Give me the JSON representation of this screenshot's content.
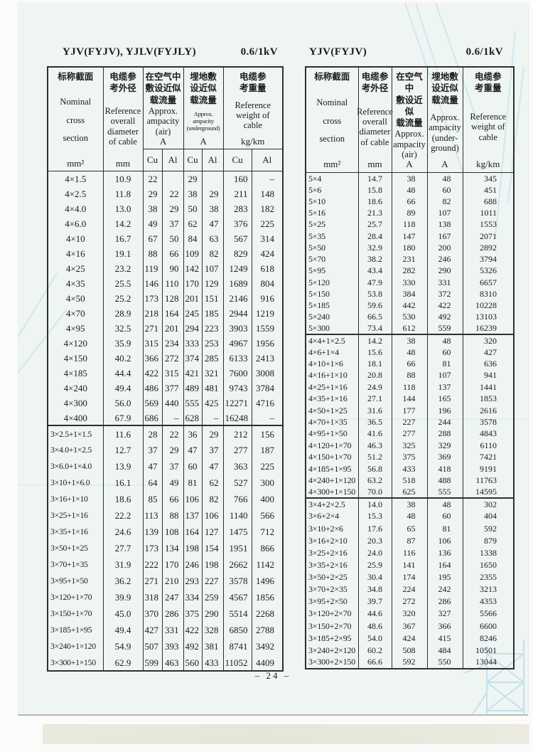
{
  "page": {
    "footer": "–  24  –"
  },
  "left_table": {
    "title": "YJV(FYJV), YJLV(FYJLY)",
    "voltage": "0.6/1kV",
    "header": {
      "section": {
        "zh": "标称截面",
        "en": "Nominal\ncross\nsection",
        "unit": "mm²"
      },
      "diameter": {
        "zh": "电缆参\n考外径",
        "en": "Reference\noverall\ndiameter\nof cable",
        "unit": "mm"
      },
      "air": {
        "zh": "在空气中\n敷设近似\n载流量",
        "en": "Approx.\nampacity\n(air)",
        "unit": "A"
      },
      "underground": {
        "zh": "埋地敷\n设近似\n载流量",
        "en": "Approx.\nampacity\n(underground)",
        "unit": "A"
      },
      "weight": {
        "zh": "电缆参\n考重量",
        "en": "Reference\nweight of\ncable",
        "unit": "kg/km"
      },
      "cu": "Cu",
      "al": "Al"
    },
    "sections": [
      {
        "rows": [
          [
            "4×1.5",
            "10.9",
            "22",
            "",
            "29",
            "",
            "160",
            "–"
          ],
          [
            "4×2.5",
            "11.8",
            "29",
            "22",
            "38",
            "29",
            "211",
            "148"
          ],
          [
            "4×4.0",
            "13.0",
            "38",
            "29",
            "50",
            "38",
            "283",
            "182"
          ],
          [
            "4×6.0",
            "14.2",
            "49",
            "37",
            "62",
            "47",
            "376",
            "225"
          ],
          [
            "4×10",
            "16.7",
            "67",
            "50",
            "84",
            "63",
            "567",
            "314"
          ],
          [
            "4×16",
            "19.1",
            "88",
            "66",
            "109",
            "82",
            "829",
            "424"
          ],
          [
            "4×25",
            "23.2",
            "119",
            "90",
            "142",
            "107",
            "1249",
            "618"
          ],
          [
            "4×35",
            "25.5",
            "146",
            "110",
            "170",
            "129",
            "1689",
            "804"
          ],
          [
            "4×50",
            "25.2",
            "173",
            "128",
            "201",
            "151",
            "2146",
            "916"
          ],
          [
            "4×70",
            "28.9",
            "218",
            "164",
            "245",
            "185",
            "2944",
            "1219"
          ],
          [
            "4×95",
            "32.5",
            "271",
            "201",
            "294",
            "223",
            "3903",
            "1559"
          ],
          [
            "4×120",
            "35.9",
            "315",
            "234",
            "333",
            "253",
            "4967",
            "1956"
          ],
          [
            "4×150",
            "40.2",
            "366",
            "272",
            "374",
            "285",
            "6133",
            "2413"
          ],
          [
            "4×185",
            "44.4",
            "422",
            "315",
            "421",
            "321",
            "7600",
            "3008"
          ],
          [
            "4×240",
            "49.4",
            "486",
            "377",
            "489",
            "481",
            "9743",
            "3784"
          ],
          [
            "4×300",
            "56.0",
            "569",
            "440",
            "555",
            "425",
            "12271",
            "4716"
          ],
          [
            "4×400",
            "67.9",
            "686",
            "–",
            "628",
            "–",
            "16248",
            "–"
          ]
        ]
      },
      {
        "rows": [
          [
            "3×2.5+1×1.5",
            "11.6",
            "28",
            "22",
            "36",
            "29",
            "212",
            "156"
          ],
          [
            "3×4.0+1×2.5",
            "12.7",
            "37",
            "29",
            "47",
            "37",
            "277",
            "187"
          ],
          [
            "3×6.0+1×4.0",
            "13.9",
            "47",
            "37",
            "60",
            "47",
            "363",
            "225"
          ],
          [
            "3×10+1×6.0",
            "16.1",
            "64",
            "49",
            "81",
            "62",
            "527",
            "300"
          ],
          [
            "3×16+1×10",
            "18.6",
            "85",
            "66",
            "106",
            "82",
            "766",
            "400"
          ],
          [
            "3×25+1×16",
            "22.2",
            "113",
            "88",
            "137",
            "106",
            "1140",
            "566"
          ],
          [
            "3×35+1×16",
            "24.6",
            "139",
            "108",
            "164",
            "127",
            "1475",
            "712"
          ],
          [
            "3×50+1×25",
            "27.7",
            "173",
            "134",
            "198",
            "154",
            "1951",
            "866"
          ],
          [
            "3×70+1×35",
            "31.9",
            "222",
            "170",
            "246",
            "198",
            "2662",
            "1142"
          ],
          [
            "3×95+1×50",
            "36.2",
            "271",
            "210",
            "293",
            "227",
            "3578",
            "1496"
          ],
          [
            "3×120+1×70",
            "39.9",
            "318",
            "247",
            "334",
            "259",
            "4567",
            "1856"
          ],
          [
            "3×150+1×70",
            "45.0",
            "370",
            "286",
            "375",
            "290",
            "5514",
            "2268"
          ],
          [
            "3×185+1×95",
            "49.4",
            "427",
            "331",
            "422",
            "328",
            "6850",
            "2788"
          ],
          [
            "3×240+1×120",
            "54.9",
            "507",
            "393",
            "492",
            "381",
            "8741",
            "3492"
          ],
          [
            "3×300+1×150",
            "62.9",
            "599",
            "463",
            "560",
            "433",
            "11052",
            "4409"
          ]
        ]
      }
    ]
  },
  "right_table": {
    "title": "YJV(FYJV)",
    "voltage": "0.6/1kV",
    "header": {
      "section": {
        "zh": "标称截面",
        "en": "Nominal\ncross\nsection",
        "unit": "mm²"
      },
      "diameter": {
        "zh": "电缆参\n考外径",
        "en": "Reference\noverall\ndiameter\nof cable",
        "unit": "mm"
      },
      "air": {
        "zh": "在空气中\n敷设近似\n载流量",
        "en": "Approx.\nampacity\n(air)",
        "unit": "A"
      },
      "underground": {
        "zh": "埋地敷\n设近似\n载流量",
        "en": "Approx.\nampacity\n(under-\nground)",
        "unit": "A"
      },
      "weight": {
        "zh": "电缆参\n考重量",
        "en": "Reference\nweight of\ncable",
        "unit": "kg/km"
      }
    },
    "sections": [
      {
        "rows": [
          [
            "5×4",
            "14.7",
            "38",
            "48",
            "345"
          ],
          [
            "5×6",
            "15.8",
            "48",
            "60",
            "451"
          ],
          [
            "5×10",
            "18.6",
            "66",
            "82",
            "688"
          ],
          [
            "5×16",
            "21.3",
            "89",
            "107",
            "1011"
          ],
          [
            "5×25",
            "25.7",
            "118",
            "138",
            "1553"
          ],
          [
            "5×35",
            "28.4",
            "147",
            "167",
            "2071"
          ],
          [
            "5×50",
            "32.9",
            "180",
            "200",
            "2892"
          ],
          [
            "5×70",
            "38.2",
            "231",
            "246",
            "3794"
          ],
          [
            "5×95",
            "43.4",
            "282",
            "290",
            "5326"
          ],
          [
            "5×120",
            "47.9",
            "330",
            "331",
            "6657"
          ],
          [
            "5×150",
            "53.8",
            "384",
            "372",
            "8310"
          ],
          [
            "5×185",
            "59.6",
            "442",
            "422",
            "10228"
          ],
          [
            "5×240",
            "66.5",
            "530",
            "492",
            "13103"
          ],
          [
            "5×300",
            "73.4",
            "612",
            "559",
            "16239"
          ]
        ]
      },
      {
        "rows": [
          [
            "4×4+1×2.5",
            "14.2",
            "38",
            "48",
            "320"
          ],
          [
            "4×6+1×4",
            "15.6",
            "48",
            "60",
            "427"
          ],
          [
            "4×10+1×6",
            "18.1",
            "66",
            "81",
            "636"
          ],
          [
            "4×16+1×10",
            "20.8",
            "88",
            "107",
            "941"
          ],
          [
            "4×25+1×16",
            "24.9",
            "118",
            "137",
            "1441"
          ],
          [
            "4×35+1×16",
            "27.1",
            "144",
            "165",
            "1853"
          ],
          [
            "4×50+1×25",
            "31.6",
            "177",
            "196",
            "2616"
          ],
          [
            "4×70+1×35",
            "36.5",
            "227",
            "244",
            "3578"
          ],
          [
            "4×95+1×50",
            "41.6",
            "277",
            "288",
            "4843"
          ],
          [
            "4×120+1×70",
            "46.3",
            "325",
            "329",
            "6110"
          ],
          [
            "4×150+1×70",
            "51.2",
            "375",
            "369",
            "7421"
          ],
          [
            "4×185+1×95",
            "56.8",
            "433",
            "418",
            "9191"
          ],
          [
            "4×240+1×120",
            "63.2",
            "518",
            "488",
            "11763"
          ],
          [
            "4×300+1×150",
            "70.0",
            "625",
            "555",
            "14595"
          ]
        ]
      },
      {
        "rows": [
          [
            "3×4+2×2.5",
            "14.0",
            "38",
            "48",
            "302"
          ],
          [
            "3×6+2×4",
            "15.3",
            "48",
            "60",
            "404"
          ],
          [
            "3×10+2×6",
            "17.6",
            "65",
            "81",
            "592"
          ],
          [
            "3×16+2×10",
            "20.3",
            "87",
            "106",
            "879"
          ],
          [
            "3×25+2×16",
            "24.0",
            "116",
            "136",
            "1338"
          ],
          [
            "3×35+2×16",
            "25.9",
            "141",
            "164",
            "1650"
          ],
          [
            "3×50+2×25",
            "30.4",
            "174",
            "195",
            "2355"
          ],
          [
            "3×70+2×35",
            "34.8",
            "224",
            "242",
            "3213"
          ],
          [
            "3×95+2×50",
            "39.7",
            "272",
            "286",
            "4353"
          ],
          [
            "3×120+2×70",
            "44.6",
            "320",
            "327",
            "5566"
          ],
          [
            "3×150+2×70",
            "48.6",
            "367",
            "366",
            "6600"
          ],
          [
            "3×185+2×95",
            "54.0",
            "424",
            "415",
            "8246"
          ],
          [
            "3×240+2×120",
            "60.2",
            "508",
            "484",
            "10501"
          ],
          [
            "3×300+2×150",
            "66.6",
            "592",
            "550",
            "13044"
          ]
        ]
      }
    ]
  }
}
